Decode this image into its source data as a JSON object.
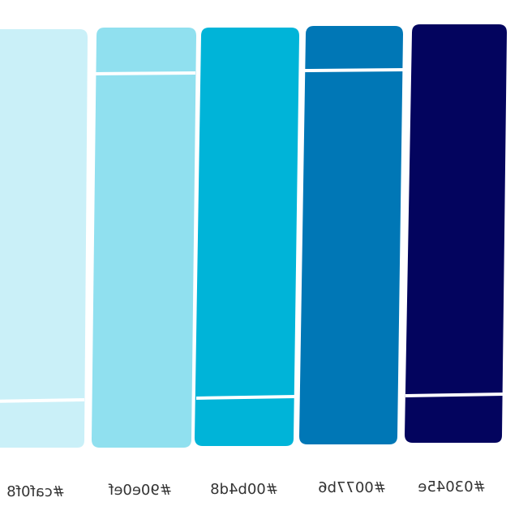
{
  "palette": {
    "swatches": [
      {
        "label": "#caf0f8",
        "color": "#caf0f8"
      },
      {
        "label": "#90e0ef",
        "color": "#90e0ef"
      },
      {
        "label": "#00b4d8",
        "color": "#00b4d8"
      },
      {
        "label": "#0077b6",
        "color": "#0077b6"
      },
      {
        "label": "#03045e",
        "color": "#03045e"
      }
    ],
    "divider_color": "#ffffff",
    "label_color": "#333333",
    "background": "#ffffff"
  }
}
